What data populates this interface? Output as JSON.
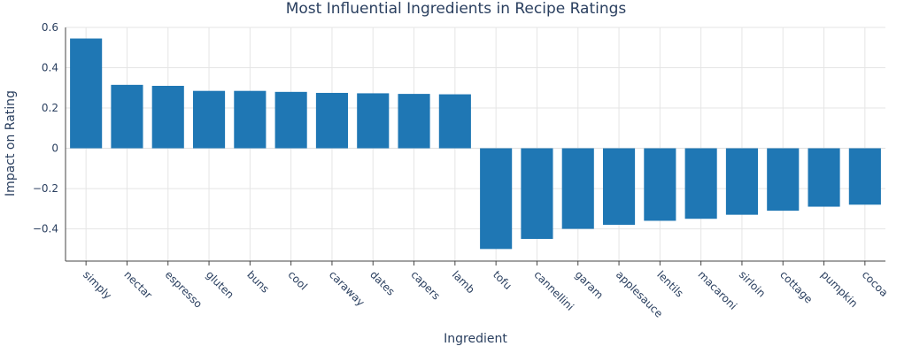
{
  "chart_data": {
    "type": "bar",
    "title": "Most Influential Ingredients in Recipe Ratings",
    "xlabel": "Ingredient",
    "ylabel": "Impact on Rating",
    "categories": [
      "simply",
      "nectar",
      "espresso",
      "gluten",
      "buns",
      "cool",
      "caraway",
      "dates",
      "capers",
      "lamb",
      "tofu",
      "cannellini",
      "garam",
      "applesauce",
      "lentils",
      "macaroni",
      "sirloin",
      "cottage",
      "pumpkin",
      "cocoa"
    ],
    "values": [
      0.545,
      0.315,
      0.31,
      0.285,
      0.285,
      0.28,
      0.275,
      0.273,
      0.27,
      0.268,
      -0.5,
      -0.45,
      -0.4,
      -0.38,
      -0.36,
      -0.35,
      -0.33,
      -0.31,
      -0.29,
      -0.28
    ],
    "ylim": [
      -0.56,
      0.6
    ],
    "yticks": [
      -0.4,
      -0.2,
      0,
      0.2,
      0.4,
      0.6
    ],
    "ytick_labels": [
      "−0.4",
      "−0.2",
      "0",
      "0.2",
      "0.4",
      "0.6"
    ],
    "grid": true,
    "bar_color": "#1f77b4"
  }
}
